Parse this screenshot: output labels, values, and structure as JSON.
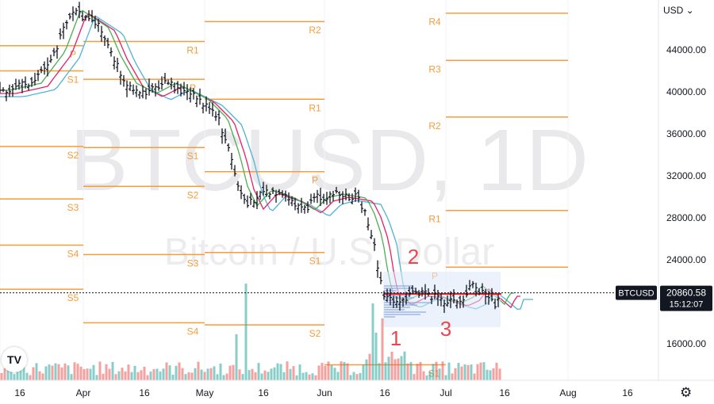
{
  "chart_data": {
    "type": "candlestick",
    "symbol": "BTCUSD",
    "interval": "1D",
    "watermark": {
      "title": "BTCUSD, 1D",
      "subtitle": "Bitcoin / U.S. Dollar"
    },
    "currency": "USD",
    "last_price": "20860.58",
    "countdown": "15:12:07",
    "y_axis": {
      "ticks": [
        "44000.00",
        "40000.00",
        "36000.00",
        "32000.00",
        "28000.00",
        "24000.00",
        "20000.00",
        "16000.00"
      ],
      "ylim": [
        12000,
        47500
      ]
    },
    "x_axis": {
      "ticks": [
        "16",
        "Apr",
        "16",
        "May",
        "16",
        "Jun",
        "16",
        "Jul",
        "16",
        "Aug",
        "16"
      ]
    },
    "annotations": [
      "1",
      "2",
      "3"
    ],
    "pivot_points": [
      {
        "label": "P",
        "price": 44400
      },
      {
        "label": "S1",
        "price": 42000
      },
      {
        "label": "S2",
        "price": 34800
      },
      {
        "label": "S3",
        "price": 29800
      },
      {
        "label": "S4",
        "price": 25400
      },
      {
        "label": "S5",
        "price": 21200
      },
      {
        "label": "R1",
        "price": 44800
      },
      {
        "label": "P",
        "price": 41200
      },
      {
        "label": "S1",
        "price": 34700
      },
      {
        "label": "S2",
        "price": 31000
      },
      {
        "label": "S3",
        "price": 24500
      },
      {
        "label": "S4",
        "price": 18000
      },
      {
        "label": "R2",
        "price": 46700
      },
      {
        "label": "R1",
        "price": 39300
      },
      {
        "label": "P",
        "price": 32400
      },
      {
        "label": "S1",
        "price": 24700
      },
      {
        "label": "S2",
        "price": 17800
      },
      {
        "label": "S1",
        "price": 14000
      },
      {
        "label": "R4",
        "price": 47500
      },
      {
        "label": "R3",
        "price": 43000
      },
      {
        "label": "R2",
        "price": 37600
      },
      {
        "label": "R1",
        "price": 28700
      },
      {
        "label": "P",
        "price": 23300
      }
    ],
    "colors": {
      "up": "#26a69a",
      "down": "#ef5350",
      "pivot": "#f59c3c",
      "ema_fast": "#4caf50",
      "ema_mid": "#e91e63",
      "ema_slow": "#4fb3d9",
      "poc": "#e0191c",
      "annotation": "#e8474f",
      "bars": "#131722"
    }
  },
  "ui": {
    "currency_label": "USD ⌄",
    "settings_icon": "⚙",
    "logo_text": "TV"
  }
}
